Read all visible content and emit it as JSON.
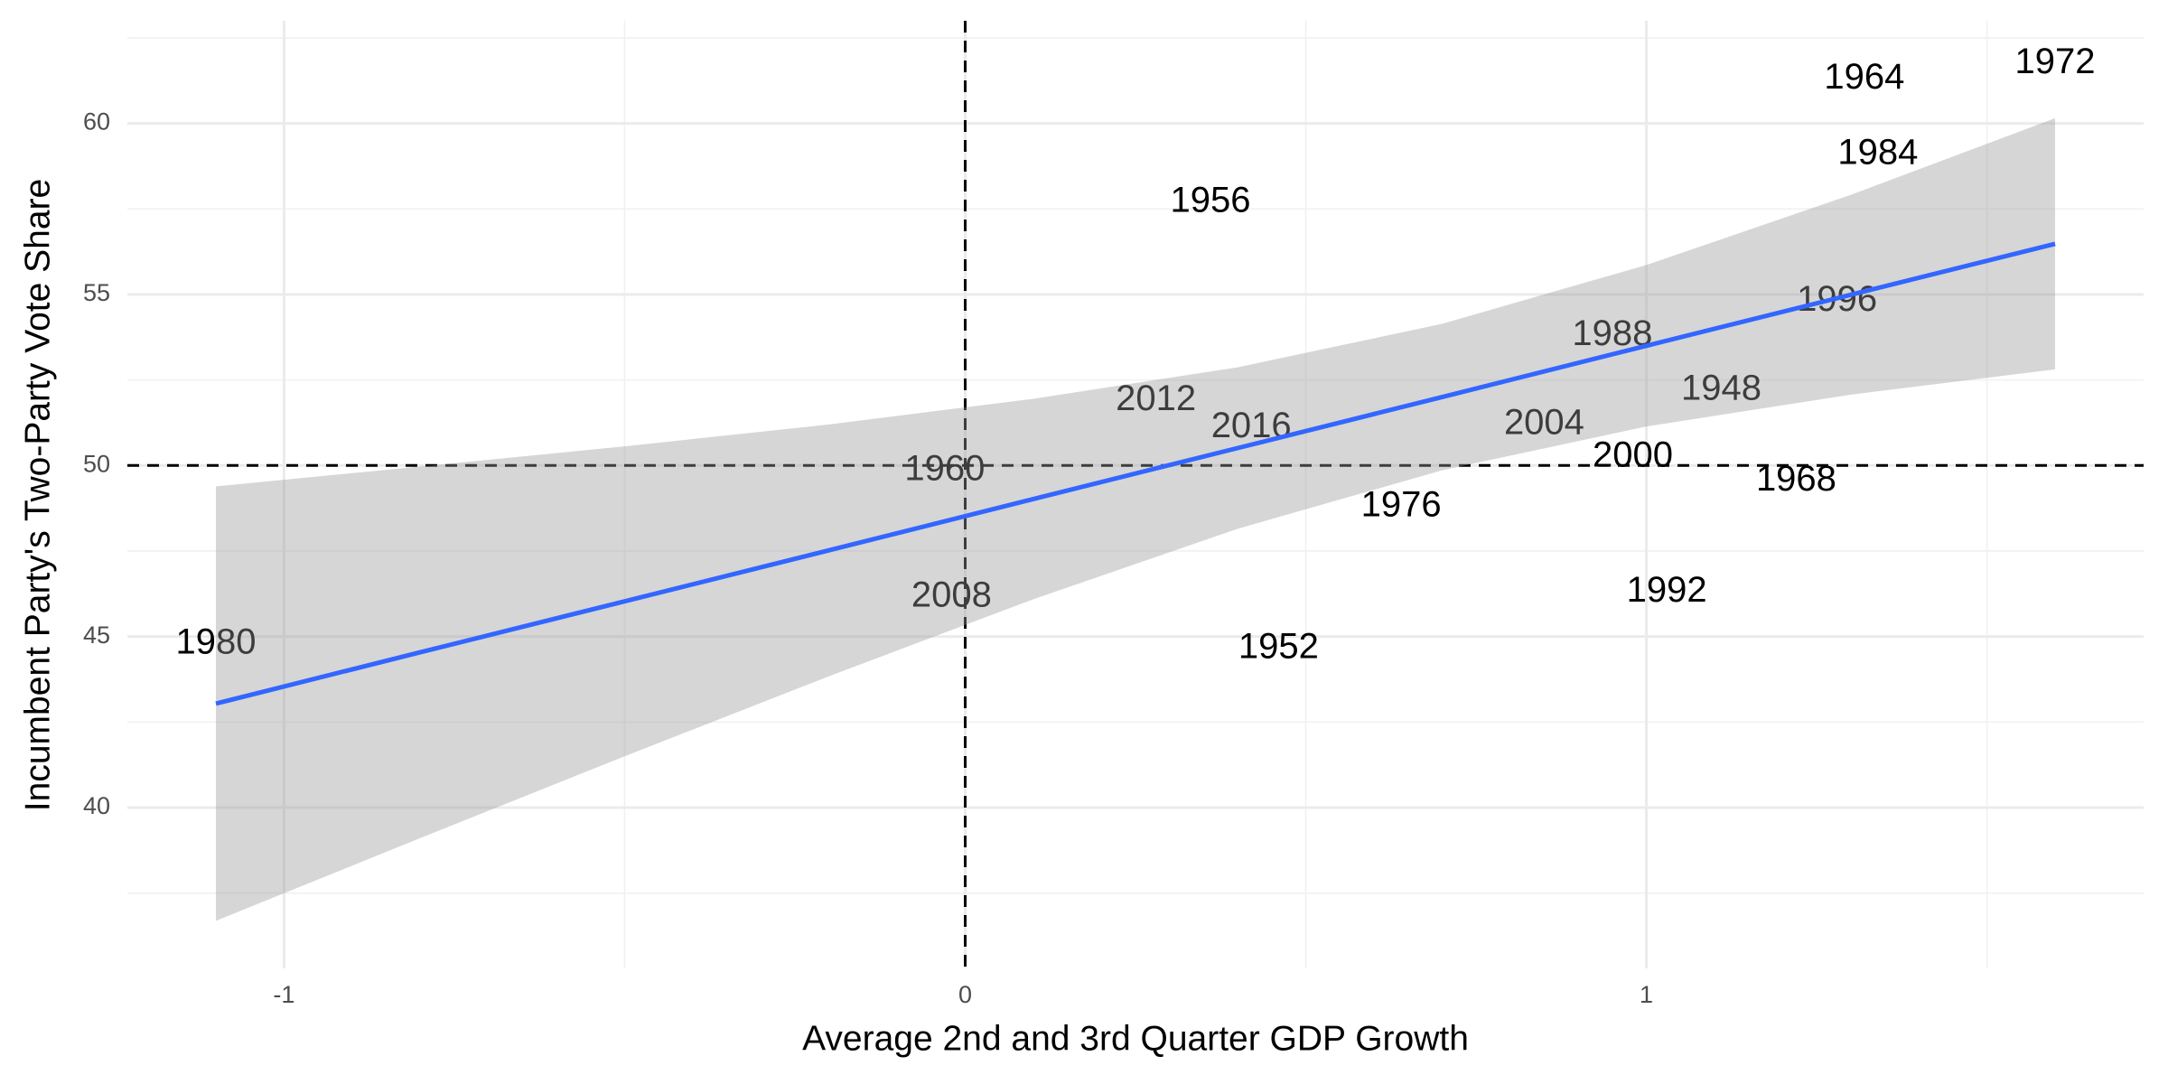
{
  "chart_data": {
    "type": "scatter",
    "xlabel": "Average 2nd and 3rd Quarter GDP Growth",
    "ylabel": "Incumbent Party's Two-Party Vote Share",
    "xlim": [
      -1.23,
      1.73
    ],
    "ylim": [
      35.3,
      63.0
    ],
    "xticks": [
      -1,
      0,
      1
    ],
    "yticks": [
      40,
      45,
      50,
      55,
      60
    ],
    "xminorticks": [
      -0.5,
      0.5,
      1.5
    ],
    "yminorticks": [
      37.5,
      42.5,
      47.5,
      52.5,
      57.5,
      62.5
    ],
    "grid": true,
    "hline": 50,
    "vline": 0,
    "points": {
      "labels": [
        "1980",
        "1960",
        "2008",
        "2012",
        "2016",
        "1956",
        "1952",
        "1976",
        "2004",
        "2000",
        "1992",
        "1988",
        "1948",
        "1968",
        "1996",
        "1984",
        "1964",
        "1972"
      ],
      "x": [
        -1.1,
        -0.03,
        -0.02,
        0.28,
        0.42,
        0.36,
        0.46,
        0.64,
        0.85,
        0.98,
        1.03,
        0.95,
        1.11,
        1.22,
        1.28,
        1.34,
        1.32,
        1.6
      ],
      "values": [
        44.78,
        49.85,
        46.15,
        51.9,
        51.1,
        57.7,
        44.65,
        48.8,
        51.2,
        50.25,
        46.3,
        53.8,
        52.2,
        49.55,
        54.8,
        59.1,
        61.3,
        61.75
      ],
      "color": "#000000"
    },
    "fit": {
      "x": [
        -1.1,
        -0.8,
        -0.5,
        -0.2,
        0.1,
        0.4,
        0.7,
        1.0,
        1.3,
        1.6
      ],
      "values": [
        43.04,
        44.54,
        46.03,
        47.52,
        49.02,
        50.51,
        52.0,
        53.5,
        54.99,
        56.48
      ],
      "upper": [
        49.39,
        49.97,
        50.56,
        51.2,
        51.95,
        52.87,
        54.14,
        55.86,
        57.91,
        60.15
      ],
      "lower": [
        36.69,
        39.11,
        41.5,
        43.84,
        46.09,
        48.15,
        49.86,
        51.14,
        52.07,
        52.81
      ],
      "color": "#3366ff",
      "band_color": "#999999"
    }
  }
}
